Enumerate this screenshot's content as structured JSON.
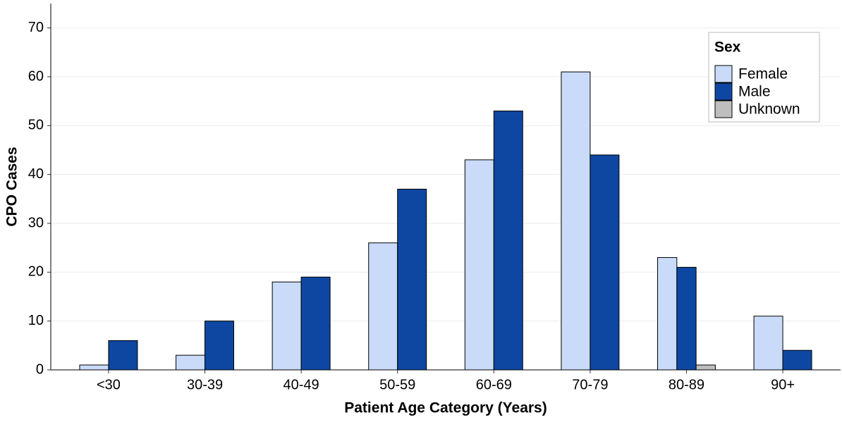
{
  "chart_data": {
    "type": "bar",
    "x_label": "Patient Age Category (Years)",
    "y_label": "CPO Cases",
    "categories": [
      "<30",
      "30-39",
      "40-49",
      "50-59",
      "60-69",
      "70-79",
      "80-89",
      "90+"
    ],
    "series": [
      {
        "name": "Female",
        "color": "#c9dbf8",
        "values": [
          1,
          3,
          18,
          26,
          43,
          61,
          23,
          11
        ]
      },
      {
        "name": "Male",
        "color": "#0d47a1",
        "values": [
          6,
          10,
          19,
          37,
          53,
          44,
          21,
          4
        ]
      },
      {
        "name": "Unknown",
        "color": "#bebebe",
        "values": [
          null,
          null,
          null,
          null,
          null,
          null,
          1,
          null
        ]
      }
    ],
    "legend_title": "Sex",
    "legend": "top-right",
    "ylim": [
      0,
      75
    ],
    "yticks": [
      0,
      10,
      20,
      30,
      40,
      50,
      60,
      70
    ],
    "grid": true
  }
}
